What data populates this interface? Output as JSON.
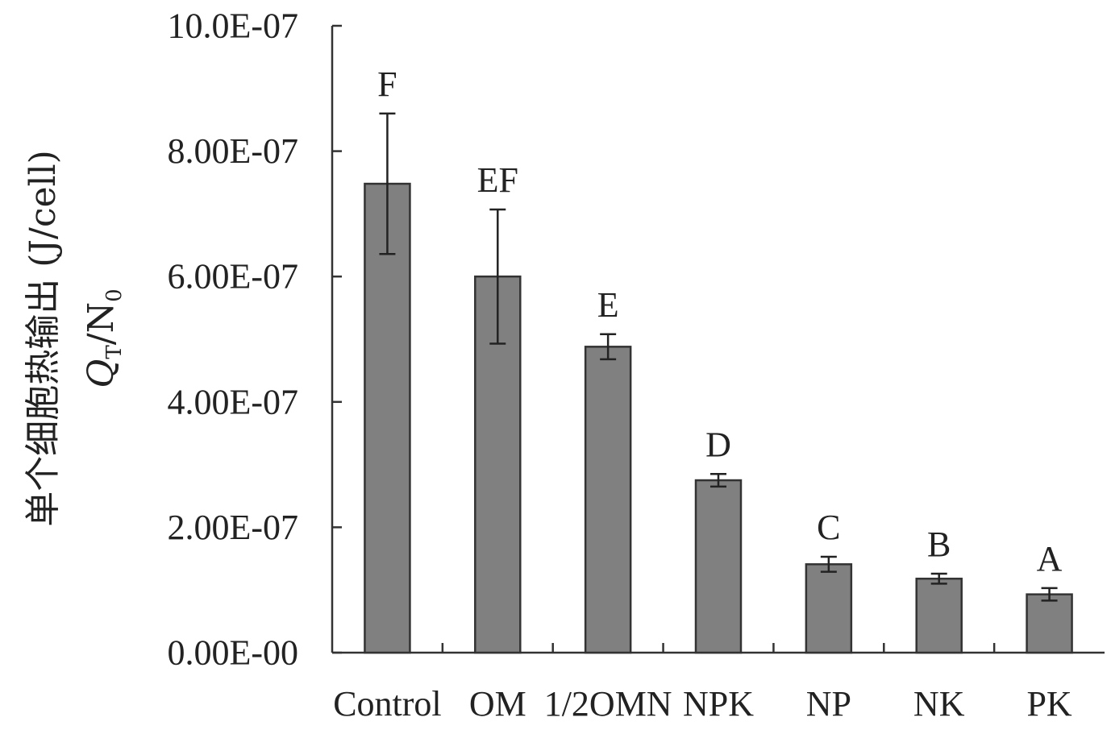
{
  "chart_data": {
    "type": "bar",
    "title": "",
    "xlabel": "",
    "ylabel_line1": "单个细胞热输出 (J/cell)",
    "ylabel_line2_main": "Q",
    "ylabel_line2_sub1": "T",
    "ylabel_line2_mid": "/N",
    "ylabel_line2_sub2": "0",
    "ylim": [
      0,
      1e-06
    ],
    "yticks": [
      {
        "value": 0,
        "label": "0.00E-00"
      },
      {
        "value": 2e-07,
        "label": "2.00E-07"
      },
      {
        "value": 4e-07,
        "label": "4.00E-07"
      },
      {
        "value": 6e-07,
        "label": "6.00E-07"
      },
      {
        "value": 8e-07,
        "label": "8.00E-07"
      },
      {
        "value": 1e-06,
        "label": "10.0E-07"
      }
    ],
    "categories": [
      "Control",
      "OM",
      "1/2OMN",
      "NPK",
      "NP",
      "NK",
      "PK"
    ],
    "values": [
      7.48e-07,
      6e-07,
      4.88e-07,
      2.75e-07,
      1.41e-07,
      1.18e-07,
      9.3e-08
    ],
    "errors": [
      1.12e-07,
      1.07e-07,
      2e-08,
      1e-08,
      1.2e-08,
      8e-09,
      1e-08
    ],
    "significance": [
      "F",
      "EF",
      "E",
      "D",
      "C",
      "B",
      "A"
    ],
    "bar_color": "#808080",
    "grid": false
  }
}
